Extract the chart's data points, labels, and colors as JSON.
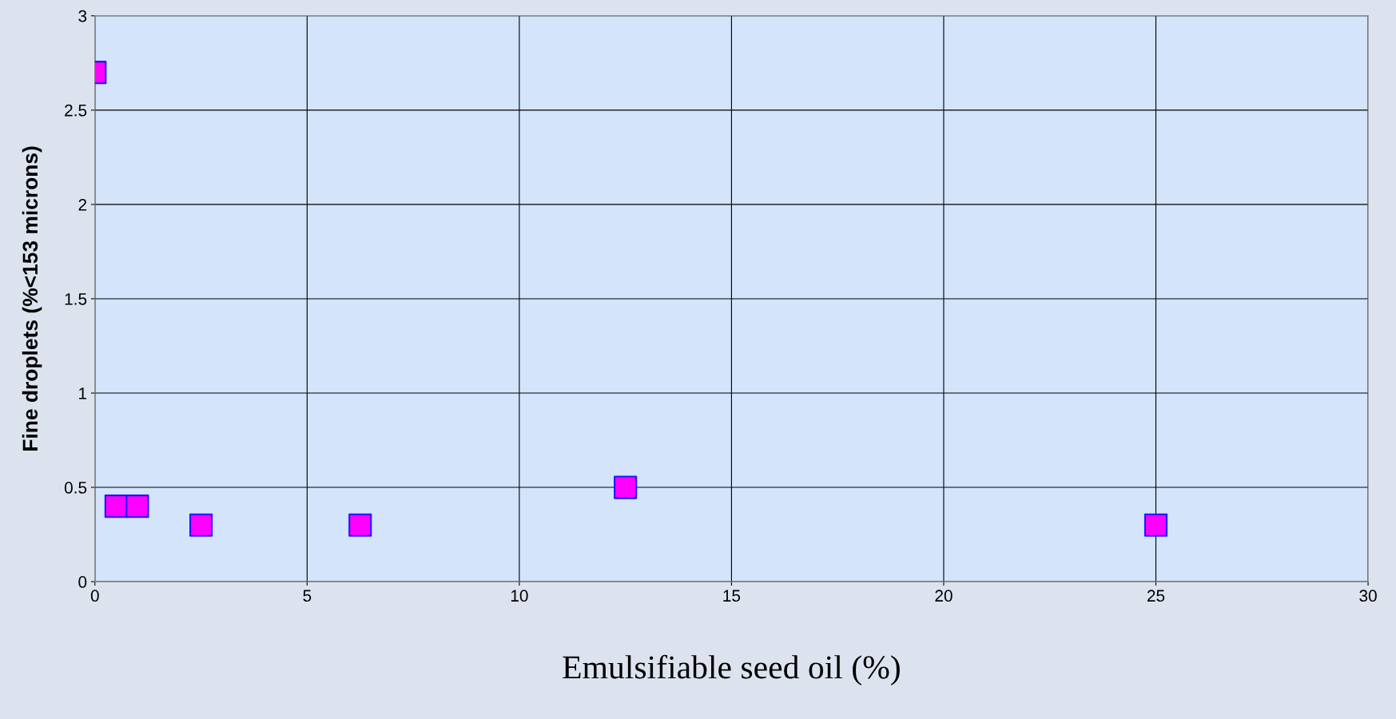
{
  "chart_data": {
    "type": "scatter",
    "xlabel": "Emulsifiable seed oil (%)",
    "ylabel": "Fine droplets (%<153 microns)",
    "x": [
      0,
      0.5,
      1,
      2.5,
      6.25,
      12.5,
      25
    ],
    "series": [
      {
        "color": "#ff00ff",
        "values": [
          2.7,
          0.4,
          0.4,
          0.3,
          0.3,
          0.5,
          0.3
        ]
      }
    ],
    "xlim": [
      0,
      30
    ],
    "xticks": [
      0,
      5,
      10,
      15,
      20,
      25,
      30
    ],
    "ylim": [
      0,
      3
    ],
    "yticks": [
      0,
      0.5,
      1,
      1.5,
      2,
      2.5,
      3
    ],
    "grid": true,
    "marker": "square",
    "legend": false
  }
}
